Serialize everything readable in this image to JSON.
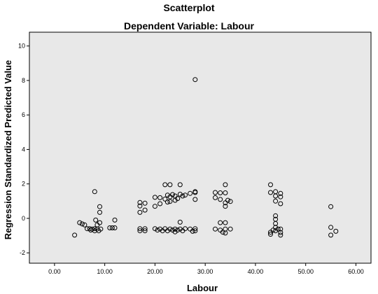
{
  "chart_data": {
    "type": "scatter",
    "title": "Scatterplot",
    "subtitle": "Dependent Variable: Labour",
    "xlabel": "Labour",
    "ylabel": "Regression Standardized Predicted Value",
    "xlim": [
      -5,
      63
    ],
    "ylim": [
      -2.6,
      10.8
    ],
    "xticks": [
      0,
      10,
      20,
      30,
      40,
      50,
      60
    ],
    "xtick_labels": [
      "0.00",
      "10.00",
      "20.00",
      "30.00",
      "40.00",
      "50.00",
      "60.00"
    ],
    "yticks": [
      -2,
      0,
      2,
      4,
      6,
      8,
      10
    ],
    "ytick_labels": [
      "-2",
      "0",
      "2",
      "4",
      "6",
      "8",
      "10"
    ],
    "grid": false,
    "background": "#e8e8e8",
    "marker": "hollow-circle",
    "points": [
      [
        4,
        -0.97
      ],
      [
        5,
        -0.25
      ],
      [
        5.5,
        -0.32
      ],
      [
        6,
        -0.38
      ],
      [
        6.5,
        -0.6
      ],
      [
        7,
        -0.6
      ],
      [
        7.2,
        -0.68
      ],
      [
        7.5,
        -0.62
      ],
      [
        8,
        -0.6
      ],
      [
        8,
        -0.72
      ],
      [
        8,
        1.55
      ],
      [
        8.2,
        -0.1
      ],
      [
        8.5,
        -0.38
      ],
      [
        8.5,
        -0.62
      ],
      [
        8.8,
        -0.72
      ],
      [
        9,
        -0.25
      ],
      [
        9,
        0.35
      ],
      [
        9,
        0.68
      ],
      [
        9.2,
        -0.62
      ],
      [
        11,
        -0.55
      ],
      [
        11.5,
        -0.55
      ],
      [
        12,
        -0.55
      ],
      [
        12,
        -0.1
      ],
      [
        17,
        0.92
      ],
      [
        17,
        0.72
      ],
      [
        17,
        0.35
      ],
      [
        17,
        -0.6
      ],
      [
        17,
        -0.72
      ],
      [
        18,
        0.88
      ],
      [
        18,
        0.48
      ],
      [
        18,
        -0.6
      ],
      [
        18,
        -0.72
      ],
      [
        20,
        1.22
      ],
      [
        20,
        0.7
      ],
      [
        20,
        -0.6
      ],
      [
        20.5,
        -0.68
      ],
      [
        21,
        0.85
      ],
      [
        21,
        1.2
      ],
      [
        21,
        -0.62
      ],
      [
        21.5,
        -0.72
      ],
      [
        22,
        1.12
      ],
      [
        22,
        1.95
      ],
      [
        22,
        -0.6
      ],
      [
        22.5,
        1.35
      ],
      [
        22.5,
        0.95
      ],
      [
        22.5,
        -0.72
      ],
      [
        23,
        1.25
      ],
      [
        23,
        1.95
      ],
      [
        23,
        0.98
      ],
      [
        23,
        -0.62
      ],
      [
        23.5,
        1.38
      ],
      [
        23.5,
        -0.68
      ],
      [
        24,
        1.05
      ],
      [
        24,
        1.3
      ],
      [
        24,
        -0.62
      ],
      [
        24,
        -0.78
      ],
      [
        24.5,
        1.15
      ],
      [
        24.5,
        -0.68
      ],
      [
        25,
        1.95
      ],
      [
        25,
        1.4
      ],
      [
        25,
        -0.22
      ],
      [
        25,
        -0.62
      ],
      [
        25.5,
        1.3
      ],
      [
        25.5,
        -0.72
      ],
      [
        26,
        -0.6
      ],
      [
        26,
        1.35
      ],
      [
        27,
        1.45
      ],
      [
        27,
        -0.62
      ],
      [
        27.5,
        -0.75
      ],
      [
        28,
        8.05
      ],
      [
        28,
        1.55
      ],
      [
        28,
        1.5
      ],
      [
        28,
        1.1
      ],
      [
        28,
        -0.6
      ],
      [
        28,
        -0.72
      ],
      [
        32,
        1.5
      ],
      [
        32,
        1.2
      ],
      [
        32,
        -0.62
      ],
      [
        33,
        1.48
      ],
      [
        33,
        1.1
      ],
      [
        33,
        -0.25
      ],
      [
        33,
        -0.68
      ],
      [
        33.5,
        -0.8
      ],
      [
        34,
        1.95
      ],
      [
        34,
        1.48
      ],
      [
        34,
        0.9
      ],
      [
        34,
        0.7
      ],
      [
        34,
        -0.25
      ],
      [
        34,
        -0.62
      ],
      [
        34,
        -0.85
      ],
      [
        34.5,
        1.05
      ],
      [
        35,
        0.98
      ],
      [
        35,
        -0.62
      ],
      [
        43,
        1.95
      ],
      [
        43,
        1.5
      ],
      [
        43,
        -0.8
      ],
      [
        43,
        -0.92
      ],
      [
        43.5,
        -0.68
      ],
      [
        44,
        1.55
      ],
      [
        44,
        1.3
      ],
      [
        44,
        1.0
      ],
      [
        44,
        0.15
      ],
      [
        44,
        -0.05
      ],
      [
        44,
        -0.3
      ],
      [
        44,
        -0.52
      ],
      [
        44,
        -0.72
      ],
      [
        44.5,
        -0.62
      ],
      [
        45,
        1.45
      ],
      [
        45,
        1.25
      ],
      [
        45,
        0.85
      ],
      [
        45,
        -0.62
      ],
      [
        45,
        -0.82
      ],
      [
        45,
        -0.97
      ],
      [
        55,
        0.68
      ],
      [
        55,
        -0.52
      ],
      [
        55,
        -0.97
      ],
      [
        56,
        -0.75
      ]
    ]
  }
}
